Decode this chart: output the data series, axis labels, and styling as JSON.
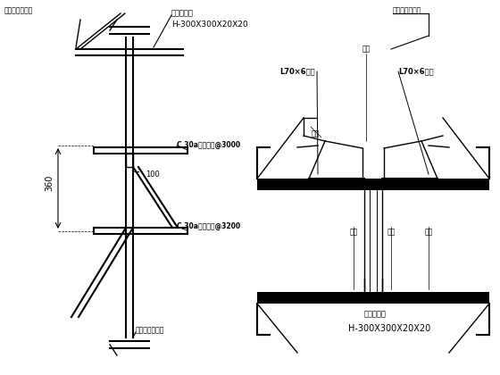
{
  "background_color": "#ffffff",
  "left_diagram": {
    "label_top_left": "此处打型钢桩基",
    "label_top_right": "工字钢横梁",
    "label_spec_top": "H-300X300X20X20",
    "label_mid": "C 30a槽钢两根@3000",
    "label_dim": "100",
    "label_bot": "C 30a槽钢两根@3200",
    "label_bottom_left": "此处打型钢桩基",
    "dim_label": "360"
  },
  "right_diagram": {
    "label_top": "此处打型钢桩基",
    "label_angle1": "L70×6角钢",
    "label_angle2": "L70×6角钢",
    "label_dian1": "点焊",
    "label_dian2": "点焊",
    "label_dian3": "点焊",
    "label_dian4": "点焊",
    "label_dian5": "点焊",
    "label_bottom": "工字钢横梁",
    "label_spec_bot": "H-300X300X20X20"
  }
}
